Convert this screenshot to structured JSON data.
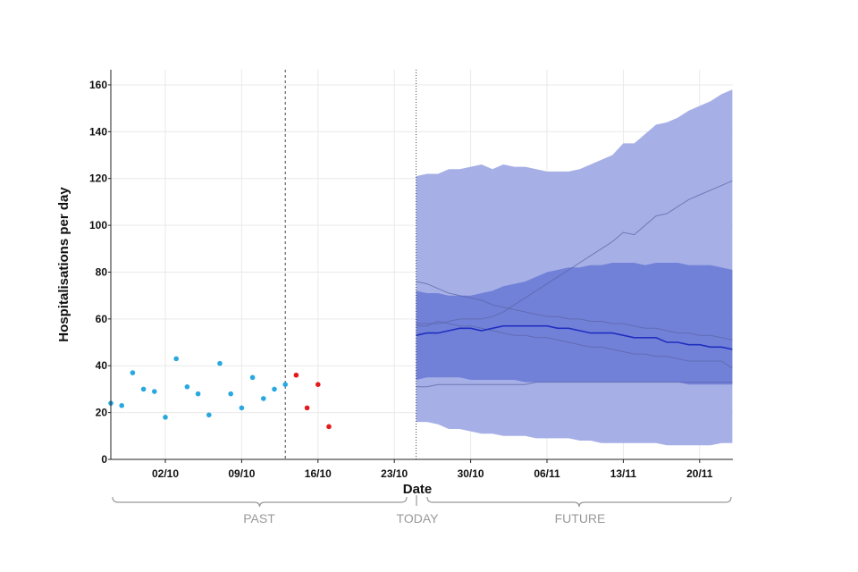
{
  "colors": {
    "observed": "#29a8e0",
    "recent_observed": "#e41a1c",
    "band_outer": "#a7b0e6",
    "band_inner": "#7281d8",
    "median": "#1f2fc0",
    "sample": "#5a66a8",
    "divider": "#444444",
    "grid": "#e9e9e9",
    "bracket": "#999999"
  },
  "sections": {
    "past": "PAST",
    "today": "TODAY",
    "future": "FUTURE"
  },
  "chart_data": {
    "type": "line",
    "xlabel": "Date",
    "ylabel": "Hospitalisations per day",
    "ylim": [
      0,
      165
    ],
    "y_ticks": [
      0,
      20,
      40,
      60,
      80,
      100,
      120,
      140,
      160
    ],
    "x_ticks": [
      {
        "day": 7,
        "label": "02/10"
      },
      {
        "day": 14,
        "label": "09/10"
      },
      {
        "day": 21,
        "label": "16/10"
      },
      {
        "day": 28,
        "label": "23/10"
      },
      {
        "day": 35,
        "label": "30/10"
      },
      {
        "day": 42,
        "label": "06/11"
      },
      {
        "day": 49,
        "label": "13/11"
      },
      {
        "day": 56,
        "label": "20/11"
      }
    ],
    "xlim": [
      2,
      59
    ],
    "grid": true,
    "vertical_markers": [
      {
        "day": 18,
        "style": "dashed"
      },
      {
        "day": 30,
        "style": "dotted"
      }
    ],
    "observed": [
      {
        "day": 2,
        "y": 24
      },
      {
        "day": 3,
        "y": 23
      },
      {
        "day": 4,
        "y": 37
      },
      {
        "day": 5,
        "y": 30
      },
      {
        "day": 6,
        "y": 29
      },
      {
        "day": 7,
        "y": 18
      },
      {
        "day": 8,
        "y": 43
      },
      {
        "day": 9,
        "y": 31
      },
      {
        "day": 10,
        "y": 28
      },
      {
        "day": 11,
        "y": 19
      },
      {
        "day": 12,
        "y": 41
      },
      {
        "day": 13,
        "y": 28
      },
      {
        "day": 14,
        "y": 22
      },
      {
        "day": 15,
        "y": 35
      },
      {
        "day": 16,
        "y": 26
      },
      {
        "day": 17,
        "y": 30
      },
      {
        "day": 18,
        "y": 32
      }
    ],
    "recent_observed": [
      {
        "day": 19,
        "y": 36
      },
      {
        "day": 20,
        "y": 22
      },
      {
        "day": 21,
        "y": 32
      },
      {
        "day": 22,
        "y": 14
      }
    ],
    "forecast": {
      "days": [
        30,
        31,
        32,
        33,
        34,
        35,
        36,
        37,
        38,
        39,
        40,
        41,
        42,
        43,
        44,
        45,
        46,
        47,
        48,
        49,
        50,
        51,
        52,
        53,
        54,
        55,
        56,
        57,
        58,
        59
      ],
      "median": [
        53,
        54,
        54,
        55,
        56,
        56,
        55,
        56,
        57,
        57,
        57,
        57,
        57,
        56,
        56,
        55,
        54,
        54,
        54,
        53,
        52,
        52,
        52,
        50,
        50,
        49,
        49,
        48,
        48,
        47
      ],
      "band_outer_low": [
        16,
        16,
        15,
        13,
        13,
        12,
        11,
        11,
        10,
        10,
        10,
        9,
        9,
        9,
        9,
        8,
        8,
        7,
        7,
        7,
        7,
        7,
        7,
        6,
        6,
        6,
        6,
        6,
        7,
        7
      ],
      "band_outer_high": [
        121,
        122,
        122,
        124,
        124,
        125,
        126,
        124,
        126,
        125,
        125,
        124,
        123,
        123,
        123,
        124,
        126,
        128,
        130,
        135,
        135,
        139,
        143,
        144,
        146,
        149,
        151,
        153,
        156,
        158
      ],
      "band_inner_low": [
        34,
        35,
        35,
        35,
        35,
        34,
        34,
        34,
        34,
        34,
        33,
        33,
        33,
        33,
        33,
        33,
        33,
        33,
        33,
        33,
        33,
        33,
        33,
        33,
        33,
        32,
        32,
        32,
        32,
        32
      ],
      "band_inner_high": [
        72,
        71,
        71,
        70,
        70,
        70,
        71,
        72,
        74,
        75,
        76,
        78,
        80,
        81,
        82,
        82,
        83,
        83,
        84,
        84,
        84,
        83,
        84,
        84,
        84,
        83,
        83,
        83,
        82,
        81
      ],
      "samples": [
        [
          31,
          31,
          32,
          32,
          32,
          32,
          32,
          32,
          32,
          32,
          32,
          33,
          33,
          33,
          33,
          33,
          33,
          33,
          33,
          33,
          33,
          33,
          33,
          33,
          33,
          33,
          33,
          33,
          33,
          33
        ],
        [
          76,
          75,
          73,
          71,
          70,
          69,
          68,
          66,
          65,
          64,
          63,
          62,
          61,
          61,
          60,
          60,
          59,
          59,
          58,
          58,
          57,
          56,
          56,
          55,
          54,
          54,
          53,
          53,
          52,
          51
        ],
        [
          58,
          58,
          58,
          59,
          60,
          60,
          60,
          61,
          63,
          66,
          69,
          72,
          75,
          78,
          81,
          84,
          87,
          90,
          93,
          97,
          96,
          100,
          104,
          105,
          108,
          111,
          113,
          115,
          117,
          119
        ],
        [
          57,
          57,
          59,
          58,
          57,
          57,
          56,
          55,
          54,
          53,
          53,
          52,
          52,
          51,
          50,
          49,
          48,
          48,
          47,
          46,
          45,
          45,
          44,
          44,
          43,
          42,
          42,
          42,
          42,
          39
        ]
      ]
    }
  }
}
